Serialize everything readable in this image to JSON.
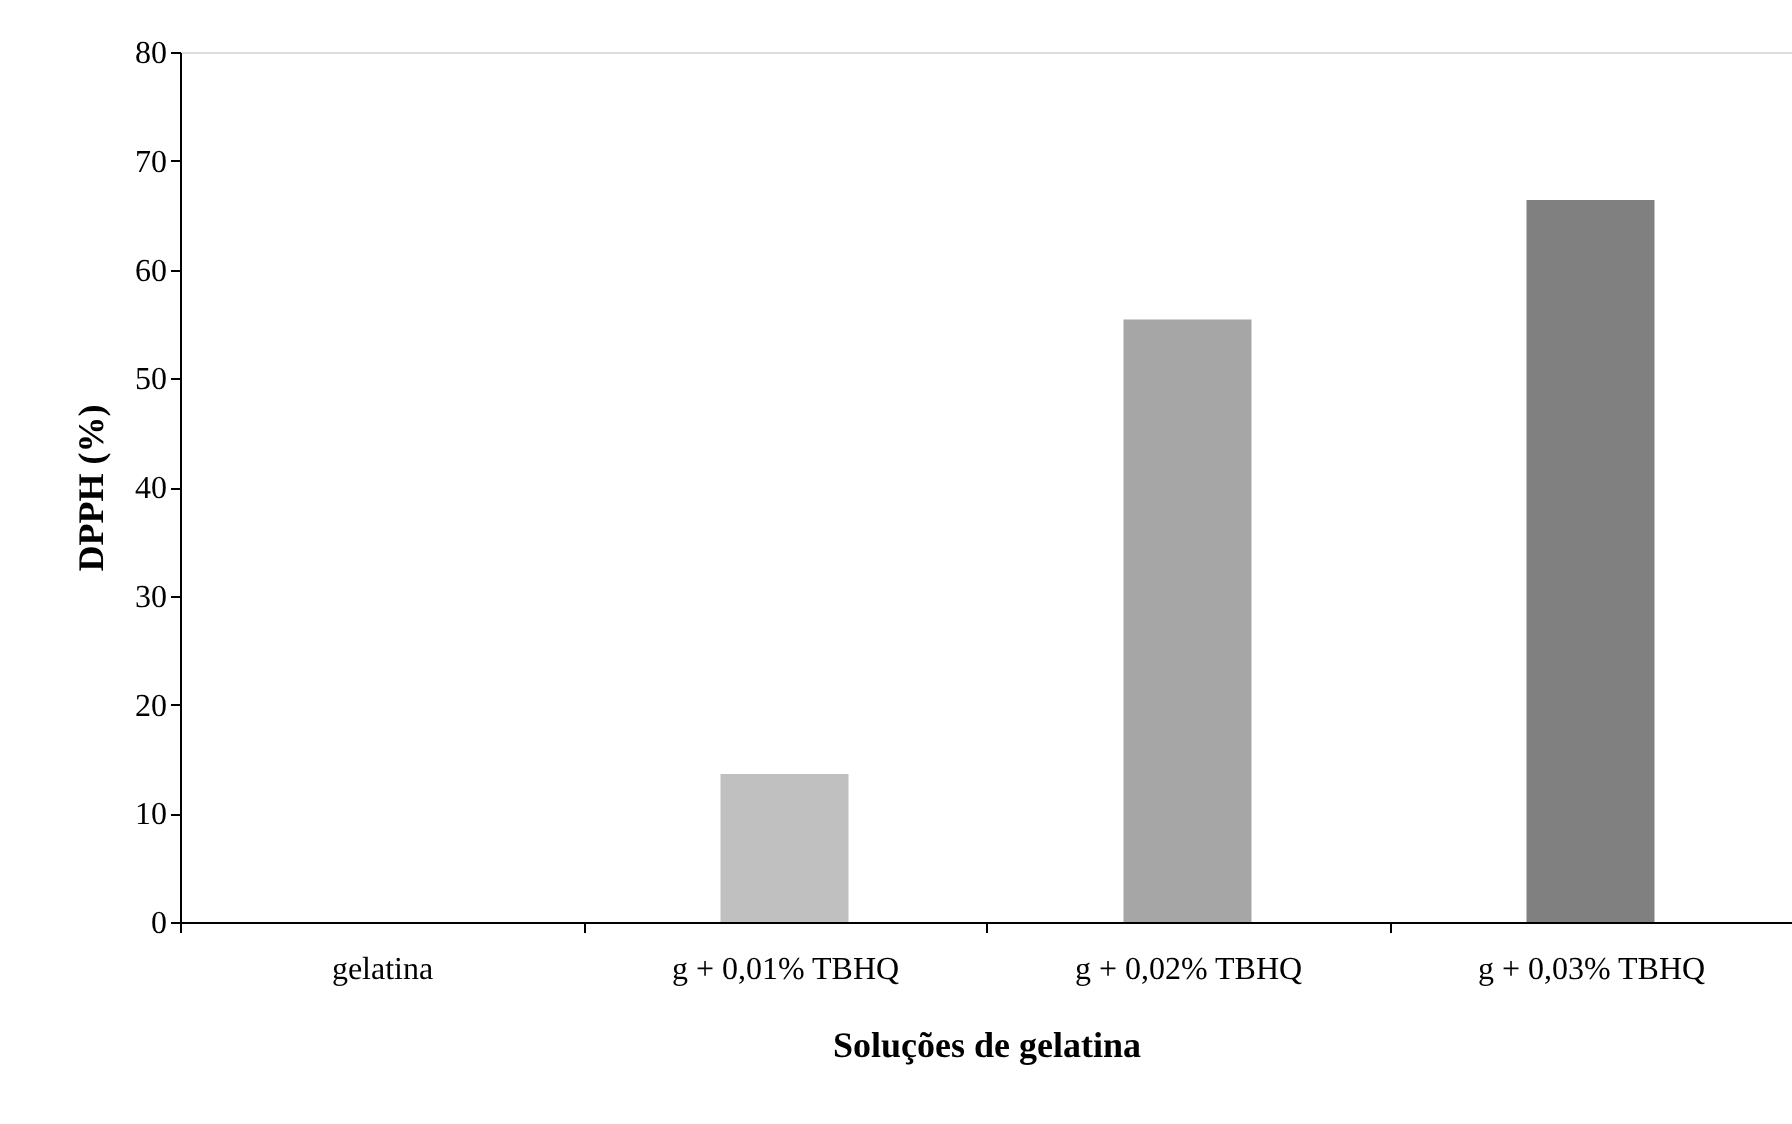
{
  "chart_data": {
    "type": "bar",
    "xlabel": "Soluções de gelatina",
    "ylabel": "DPPH (%)",
    "categories": [
      "gelatina",
      "g + 0,01% TBHQ",
      "g + 0,02% TBHQ",
      "g + 0,03% TBHQ"
    ],
    "values": [
      0,
      13.6,
      55.4,
      66.4
    ],
    "colors": [
      "#c0c0c0",
      "#c0c0c0",
      "#a6a6a6",
      "#808080"
    ],
    "ylim": [
      0,
      80
    ],
    "yticks": [
      0,
      10,
      20,
      30,
      40,
      50,
      60,
      70,
      80
    ],
    "grid": false
  }
}
